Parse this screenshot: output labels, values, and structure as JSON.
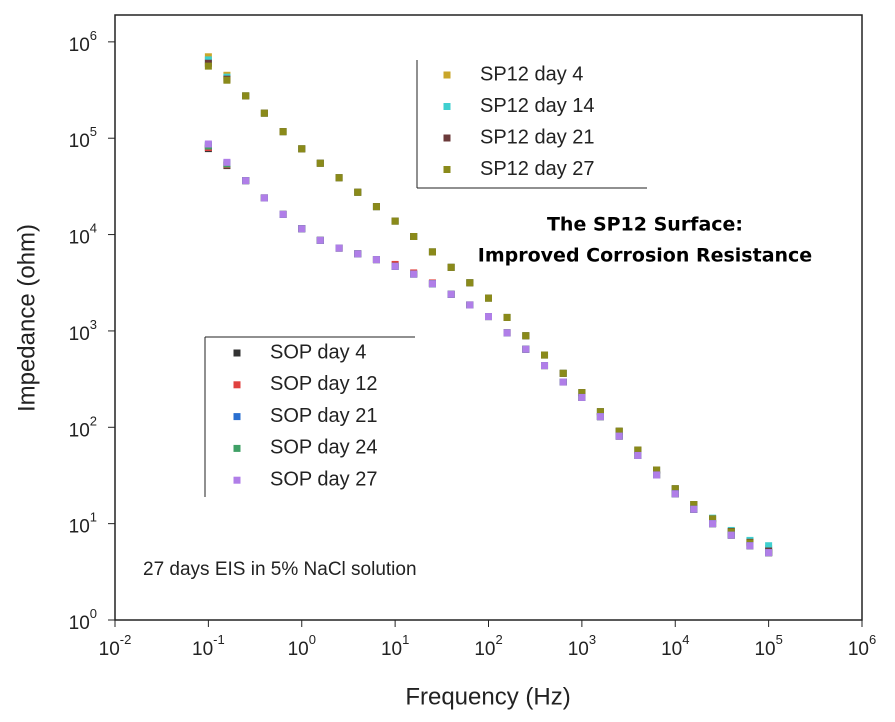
{
  "chart_data": {
    "type": "scatter",
    "xlabel": "Frequency (Hz)",
    "ylabel": "Impedance (ohm)",
    "xscale": "log",
    "yscale": "log",
    "xlim": [
      0.01,
      1000000
    ],
    "ylim": [
      1,
      1900000
    ],
    "xticks": [
      {
        "value": 0.01,
        "label": "10",
        "exponent": "-2"
      },
      {
        "value": 0.1,
        "label": "10",
        "exponent": "-1"
      },
      {
        "value": 1,
        "label": "10",
        "exponent": "0"
      },
      {
        "value": 10,
        "label": "10",
        "exponent": "1"
      },
      {
        "value": 100,
        "label": "10",
        "exponent": "2"
      },
      {
        "value": 1000,
        "label": "10",
        "exponent": "3"
      },
      {
        "value": 10000,
        "label": "10",
        "exponent": "4"
      },
      {
        "value": 100000,
        "label": "10",
        "exponent": "5"
      },
      {
        "value": 1000000,
        "label": "10",
        "exponent": "6"
      }
    ],
    "yticks": [
      {
        "value": 1,
        "label": "10",
        "exponent": "0"
      },
      {
        "value": 10,
        "label": "10",
        "exponent": "1"
      },
      {
        "value": 100,
        "label": "10",
        "exponent": "2"
      },
      {
        "value": 1000,
        "label": "10",
        "exponent": "3"
      },
      {
        "value": 10000,
        "label": "10",
        "exponent": "4"
      },
      {
        "value": 100000,
        "label": "10",
        "exponent": "5"
      },
      {
        "value": 1000000,
        "label": "10",
        "exponent": "6"
      }
    ],
    "annotations": [
      "The SP12 Surface:",
      "Improved Corrosion Resistance",
      "27 days EIS in 5% NaCl solution"
    ],
    "x": [
      0.1,
      0.158,
      0.251,
      0.398,
      0.631,
      1,
      1.58,
      2.51,
      3.98,
      6.31,
      10,
      15.8,
      25.1,
      39.8,
      63.1,
      100,
      158,
      251,
      398,
      631,
      1000,
      1580,
      2510,
      3980,
      6310,
      10000,
      15800,
      25100,
      39800,
      63100,
      100000
    ],
    "series": [
      {
        "name": "SP12 day 4",
        "color": "#c9a62a",
        "values": [
          700000,
          450000,
          275000,
          182000,
          117000,
          77600,
          55000,
          38900,
          27500,
          19500,
          13800,
          9550,
          6610,
          4570,
          3160,
          2190,
          1380,
          891,
          562,
          363,
          229,
          145,
          91,
          58,
          36,
          23,
          15.8,
          11.2,
          8.3,
          6.5,
          5.5
        ]
      },
      {
        "name": "SP12 day 14",
        "color": "#3fcfcf",
        "values": [
          650000,
          430000,
          275000,
          182000,
          117000,
          77600,
          55000,
          38900,
          27500,
          19500,
          13800,
          9550,
          6610,
          4570,
          3160,
          2190,
          1380,
          891,
          562,
          363,
          229,
          145,
          91,
          58,
          36,
          23,
          15.8,
          11.4,
          8.5,
          6.7,
          5.9
        ]
      },
      {
        "name": "SP12 day 21",
        "color": "#6b3a3a",
        "values": [
          600000,
          410000,
          275000,
          182000,
          117000,
          77600,
          55000,
          38900,
          27500,
          19500,
          13800,
          9550,
          6610,
          4570,
          3160,
          2190,
          1380,
          891,
          562,
          363,
          229,
          145,
          91,
          58,
          36,
          23,
          15.8,
          11.2,
          8.3,
          6.4,
          5.2
        ]
      },
      {
        "name": "SP12 day 27",
        "color": "#8a8a1a",
        "values": [
          560000,
          400000,
          275000,
          182000,
          117000,
          77600,
          55000,
          38900,
          27500,
          19500,
          13800,
          9550,
          6610,
          4570,
          3160,
          2190,
          1380,
          891,
          562,
          363,
          229,
          145,
          91,
          58,
          36,
          23,
          15.8,
          11.2,
          8.2,
          6.3,
          5.0
        ]
      },
      {
        "name": "SOP day 4",
        "color": "#333333",
        "values": [
          78000,
          52000,
          36300,
          24000,
          16200,
          11500,
          8710,
          7240,
          6310,
          5500,
          4680,
          3890,
          3090,
          2400,
          1860,
          1410,
          955,
          646,
          437,
          295,
          204,
          129,
          81,
          51,
          32,
          20.4,
          14.1,
          10,
          7.6,
          5.9,
          5.0
        ]
      },
      {
        "name": "SOP day 12",
        "color": "#e0413f",
        "values": [
          80000,
          53000,
          36300,
          24000,
          16200,
          11500,
          8710,
          7240,
          6310,
          5500,
          4900,
          4000,
          3150,
          2400,
          1860,
          1410,
          955,
          646,
          437,
          295,
          204,
          129,
          81,
          51,
          32,
          20.4,
          14.1,
          10,
          7.6,
          5.9,
          5.0
        ]
      },
      {
        "name": "SOP day 21",
        "color": "#2a6fd0",
        "values": [
          85000,
          55000,
          36300,
          24000,
          16200,
          11500,
          8710,
          7240,
          6310,
          5500,
          4680,
          3890,
          3090,
          2400,
          1860,
          1410,
          955,
          646,
          437,
          295,
          204,
          129,
          81,
          51,
          32,
          20.4,
          14.1,
          10,
          7.6,
          5.9,
          5.0
        ]
      },
      {
        "name": "SOP day 24",
        "color": "#3fa066",
        "values": [
          83000,
          54000,
          36300,
          24000,
          16200,
          11500,
          8710,
          7240,
          6310,
          5500,
          4680,
          3890,
          3090,
          2400,
          1860,
          1410,
          955,
          646,
          437,
          295,
          204,
          129,
          81,
          51,
          32,
          20.4,
          14.1,
          10,
          7.6,
          5.9,
          5.0
        ]
      },
      {
        "name": "SOP day 27",
        "color": "#b07ee8",
        "values": [
          87100,
          56200,
          36300,
          24000,
          16200,
          11500,
          8710,
          7240,
          6310,
          5500,
          4680,
          3890,
          3090,
          2400,
          1860,
          1410,
          955,
          646,
          437,
          295,
          204,
          129,
          81,
          51,
          32,
          20.4,
          14.1,
          10,
          7.6,
          5.9,
          5.0
        ]
      }
    ]
  }
}
